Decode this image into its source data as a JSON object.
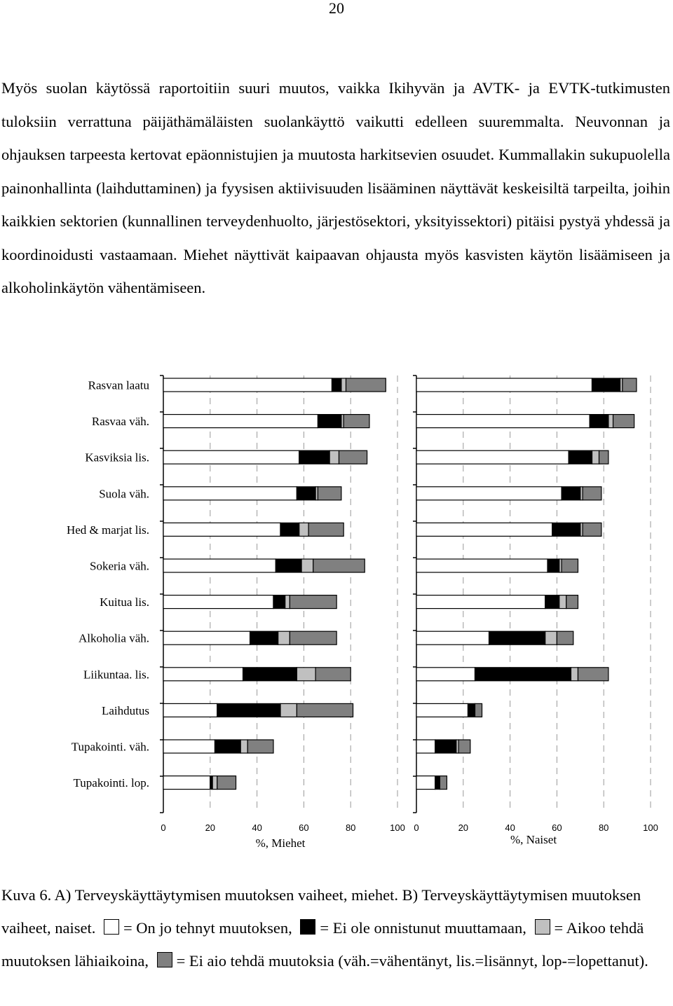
{
  "page_number": "20",
  "body_text": "Myös suolan käytössä raportoitiin suuri muutos, vaikka Ikihyvän ja AVTK- ja EVTK-tutkimusten tuloksiin verrattuna päijäthämäläisten suolankäyttö vaikutti edelleen suuremmalta. Neuvonnan ja ohjauksen tarpeesta kertovat epäonnistujien ja muutosta harkitsevien osuudet. Kummallakin sukupuolella painonhallinta (laihduttaminen) ja fyysisen aktiivisuuden lisääminen näyttävät keskeisiltä tarpeilta, joihin kaikkien sektorien (kunnallinen terveydenhuolto, järjestösektori, yksityissektori) pitäisi pystyä yhdessä ja koordinoidusti vastaamaan. Miehet näyttivät kaipaavan ohjausta myös kasvisten käytön lisäämiseen ja alkoholinkäytön vähentämiseen.",
  "chart_data": {
    "type": "bar",
    "orientation": "horizontal",
    "stacked": true,
    "categories": [
      "Rasvan laatu",
      "Rasvaa väh.",
      "Kasviksia lis.",
      "Suola väh.",
      "Hed & marjat lis.",
      "Sokeria väh.",
      "Kuitua lis.",
      "Alkoholia väh.",
      "Liikuntaa. lis.",
      "Laihdutus",
      "Tupakointi. väh.",
      "Tupakointi. lop."
    ],
    "xlim": [
      0,
      100
    ],
    "xticks": [
      "0",
      "20",
      "40",
      "60",
      "80",
      "100"
    ],
    "grid": "vertical dashed",
    "legend": "in caption",
    "series_colors": [
      "#ffffff",
      "#000000",
      "#c0c0c0",
      "#808080"
    ],
    "panels": [
      {
        "xlabel": "%, Miehet",
        "series": [
          {
            "values": [
              72,
              66,
              58,
              57,
              50,
              48,
              47,
              37,
              34,
              23,
              22,
              20
            ]
          },
          {
            "values": [
              4,
              10,
              13,
              8,
              8,
              11,
              5,
              12,
              23,
              27,
              11,
              1
            ]
          },
          {
            "values": [
              2,
              1,
              4,
              1,
              4,
              5,
              2,
              5,
              8,
              7,
              3,
              2
            ]
          },
          {
            "values": [
              17,
              11,
              12,
              10,
              15,
              22,
              20,
              20,
              15,
              24,
              11,
              8
            ]
          }
        ]
      },
      {
        "xlabel": "%, Naiset",
        "series": [
          {
            "values": [
              75,
              74,
              65,
              62,
              58,
              56,
              55,
              31,
              25,
              22,
              8,
              8
            ]
          },
          {
            "values": [
              12,
              8,
              10,
              8,
              12,
              5,
              6,
              24,
              41,
              3,
              9,
              2
            ]
          },
          {
            "values": [
              1,
              2,
              3,
              1,
              1,
              1,
              3,
              5,
              3,
              0,
              1,
              0
            ]
          },
          {
            "values": [
              6,
              9,
              4,
              8,
              8,
              7,
              5,
              7,
              13,
              3,
              5,
              3
            ]
          }
        ]
      }
    ]
  },
  "caption": {
    "text_1": "Kuva 6. A) Terveyskäyttäytymisen muutoksen vaiheet, miehet. B) Terveyskäyttäytymisen muutoksen vaiheet, naiset.",
    "legend_1": "= On jo tehnyt muutoksen,",
    "legend_2": "= Ei ole onnistunut muuttamaan,",
    "legend_3": "= Aikoo tehdä muutoksen lähiaikoina,",
    "legend_4": "= Ei aio tehdä muutoksia",
    "text_2": "(väh.=vähentänyt, lis.=lisännyt, lop-=lopettanut)."
  }
}
